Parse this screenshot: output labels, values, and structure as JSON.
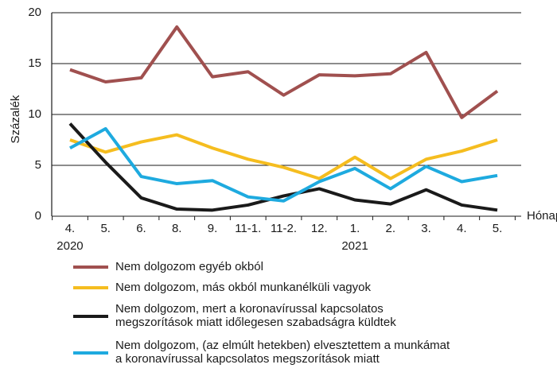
{
  "chart_data": {
    "type": "line",
    "y_label": "Százalék",
    "x_label": "Hónap",
    "categories": [
      "4.",
      "5.",
      "6.",
      "8.",
      "9.",
      "11-1.",
      "11-2.",
      "12.",
      "1.",
      "2.",
      "3.",
      "4.",
      "5."
    ],
    "year_labels": [
      "2020",
      null,
      null,
      null,
      null,
      null,
      null,
      null,
      "2021",
      null,
      null,
      null,
      null
    ],
    "ylim": [
      0,
      20
    ],
    "yticks": [
      0,
      5,
      10,
      15,
      20
    ],
    "grid": true,
    "series": [
      {
        "name": [
          "Nem dolgozom egyéb okból"
        ],
        "color": "#a0504f",
        "values": [
          14.4,
          13.2,
          13.6,
          18.6,
          13.7,
          14.2,
          11.9,
          13.9,
          13.8,
          14.0,
          16.1,
          9.7,
          12.3
        ]
      },
      {
        "name": [
          "Nem dolgozom, más okból munkanélküli vagyok"
        ],
        "color": "#f5bd1f",
        "values": [
          7.5,
          6.3,
          7.3,
          8.0,
          6.7,
          5.6,
          4.8,
          3.7,
          5.8,
          3.7,
          5.6,
          6.4,
          7.5
        ]
      },
      {
        "name": [
          "Nem dolgozom, mert a koronavírussal kapcsolatos",
          "megszorítások miatt időlegesen szabadságra küldtek"
        ],
        "color": "#1a1a1a",
        "values": [
          9.1,
          5.3,
          1.8,
          0.7,
          0.6,
          1.1,
          2.0,
          2.7,
          1.6,
          1.2,
          2.6,
          1.1,
          0.6
        ]
      },
      {
        "name": [
          "Nem dolgozom, (az elmúlt hetekben) elvesztettem a munkámat",
          "a koronavírussal kapcsolatos megszorítások miatt"
        ],
        "color": "#1eaadf",
        "values": [
          6.7,
          8.6,
          3.9,
          3.2,
          3.5,
          1.9,
          1.5,
          3.4,
          4.7,
          2.7,
          4.9,
          3.4,
          4.0
        ]
      }
    ]
  }
}
